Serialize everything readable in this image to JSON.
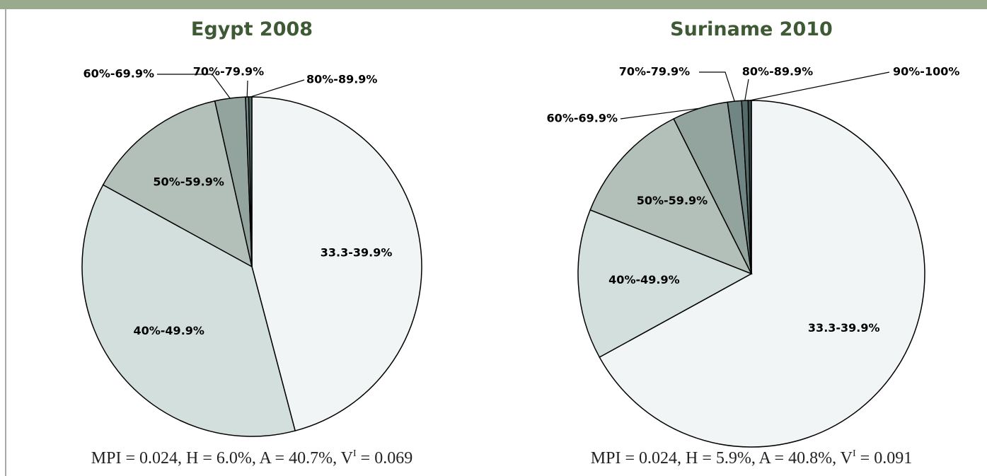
{
  "chart_data": [
    {
      "type": "pie",
      "title": "Egypt 2008",
      "categories": [
        "33.3-39.9%",
        "40%-49.9%",
        "50%-59.9%",
        "60%-69.9%",
        "70%-79.9%",
        "80%-89.9%"
      ],
      "values": [
        45.9,
        37.1,
        13.5,
        2.9,
        0.3,
        0.3
      ],
      "colors": [
        "#f2f5f5",
        "#d3dfdc",
        "#b3c0b9",
        "#93a39e",
        "#6f8684",
        "#546b6a"
      ],
      "note": {
        "text": "MPI = 0.024, H = 6.0%, A = 40.7%, V",
        "sup": "I",
        "tail": " = 0.069"
      }
    },
    {
      "type": "pie",
      "title": "Suriname 2010",
      "categories": [
        "33.3-39.9%",
        "40%-49.9%",
        "50%-59.9%",
        "60%-69.9%",
        "70%-79.9%",
        "80%-89.9%",
        "90%-100%"
      ],
      "values": [
        67.0,
        14.0,
        11.6,
        5.2,
        1.3,
        0.6,
        0.3
      ],
      "colors": [
        "#f2f5f5",
        "#d3dfdc",
        "#b3c0b9",
        "#93a39e",
        "#6f8684",
        "#546b6a",
        "#3a4f4e"
      ],
      "note": {
        "text": "MPI = 0.024, H = 5.9%, A = 40.8%, V",
        "sup": "I",
        "tail": " = 0.091"
      }
    }
  ]
}
